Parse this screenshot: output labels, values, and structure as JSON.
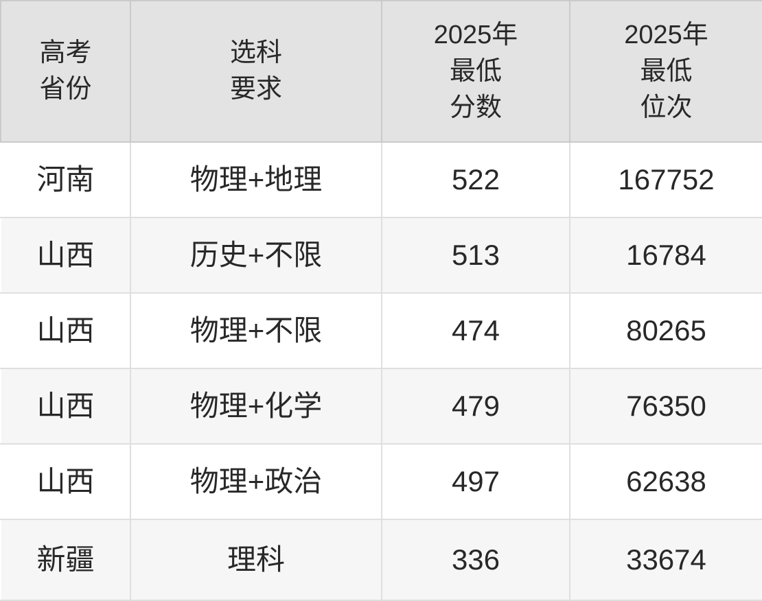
{
  "colors": {
    "header_bg": "#e3e3e3",
    "row_bg": "#ffffff",
    "row_alt_bg": "#f6f6f6",
    "header_border": "#cacaca",
    "body_border": "#dfdfdf",
    "text": "#282828"
  },
  "chart_data": {
    "type": "table",
    "columns": [
      "高考\n省份",
      "选科\n要求",
      "2025年\n最低\n分数",
      "2025年\n最低\n位次"
    ],
    "column_names_flat": [
      "高考省份",
      "选科要求",
      "2025年最低分数",
      "2025年最低位次"
    ],
    "rows": [
      {
        "province": "河南",
        "subjects": "物理+地理",
        "score": "522",
        "rank": "167752"
      },
      {
        "province": "山西",
        "subjects": "历史+不限",
        "score": "513",
        "rank": "16784"
      },
      {
        "province": "山西",
        "subjects": "物理+不限",
        "score": "474",
        "rank": "80265"
      },
      {
        "province": "山西",
        "subjects": "物理+化学",
        "score": "479",
        "rank": "76350"
      },
      {
        "province": "山西",
        "subjects": "物理+政治",
        "score": "497",
        "rank": "62638"
      },
      {
        "province": "新疆",
        "subjects": "理科",
        "score": "336",
        "rank": "33674"
      }
    ]
  }
}
